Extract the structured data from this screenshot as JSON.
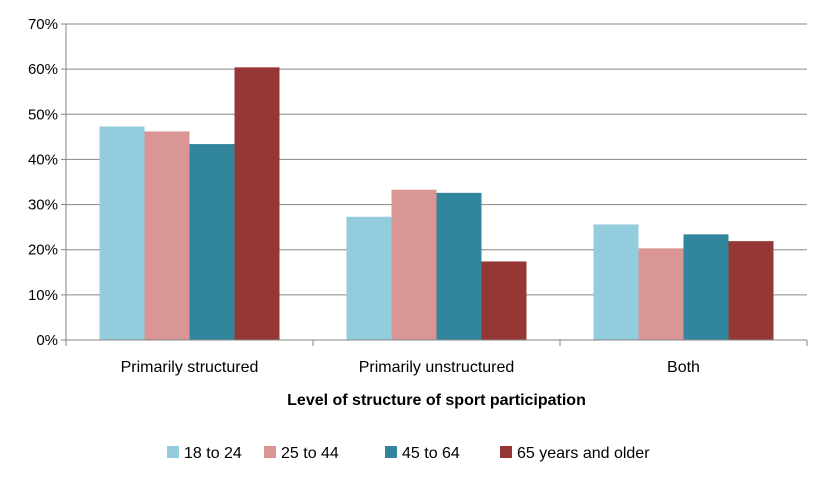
{
  "chart_data": {
    "type": "bar",
    "title": "",
    "xlabel": "Level of structure of sport participation",
    "ylabel": "",
    "ylim": [
      0,
      70
    ],
    "yticks": [
      0,
      10,
      20,
      30,
      40,
      50,
      60,
      70
    ],
    "ytick_suffix": "%",
    "grid": true,
    "legend_position": "bottom",
    "categories": [
      "Primarily structured",
      "Primarily unstructured",
      "Both"
    ],
    "series": [
      {
        "name": "18 to 24",
        "color": "#93CDDD",
        "values": [
          47.3,
          27.3,
          25.6
        ]
      },
      {
        "name": "25 to 44",
        "color": "#D99694",
        "values": [
          46.2,
          33.3,
          20.3
        ]
      },
      {
        "name": "45 to 64",
        "color": "#31859C",
        "values": [
          43.4,
          32.6,
          23.4
        ]
      },
      {
        "name": "65 years and older",
        "color": "#953735",
        "values": [
          60.4,
          17.4,
          21.9
        ]
      }
    ]
  }
}
